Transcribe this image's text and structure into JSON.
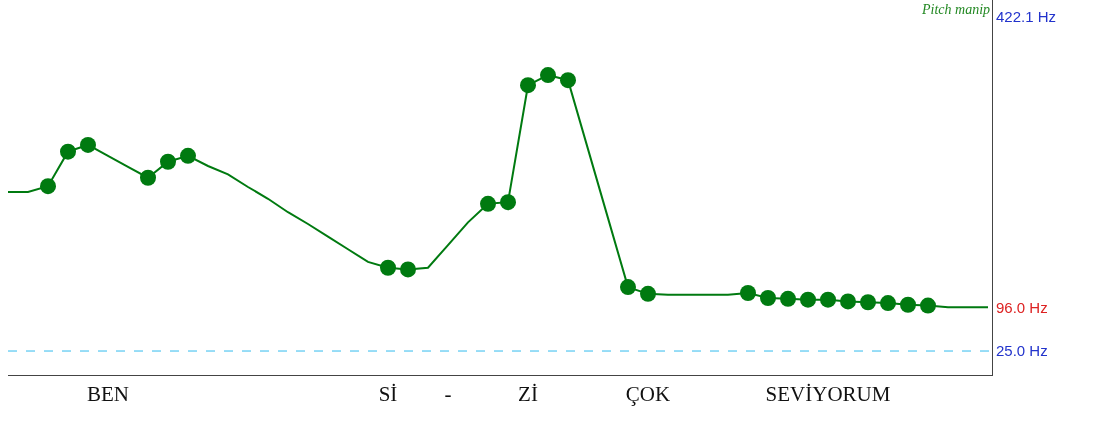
{
  "chart_data": {
    "type": "line",
    "categories": [
      null,
      null,
      null,
      null,
      null,
      "BEN",
      null,
      null,
      null,
      null,
      null,
      null,
      null,
      null,
      null,
      null,
      null,
      null,
      null,
      "Sİ",
      null,
      null,
      "-",
      null,
      null,
      null,
      "Zİ",
      null,
      null,
      null,
      null,
      null,
      "ÇOK",
      null,
      null,
      null,
      null,
      null,
      null,
      null,
      null,
      "SEVİYORUM",
      null,
      null,
      null,
      null,
      null,
      null,
      null,
      null
    ],
    "series": [
      {
        "color": "#007a10",
        "marker": "none",
        "values": [
          214,
          214,
          221,
          262,
          270,
          257,
          244,
          231,
          250,
          257,
          245,
          235,
          220,
          206,
          190,
          176,
          161,
          146,
          131,
          124,
          122,
          124,
          151,
          178,
          200,
          202,
          341,
          353,
          347,
          265,
          183,
          101,
          93,
          92,
          92,
          92,
          92,
          94,
          88,
          87,
          86,
          86,
          84,
          83,
          82,
          80,
          79,
          77,
          77,
          77
        ]
      },
      {
        "type": "scatter",
        "color": "#007a10",
        "marker": "circle",
        "values": [
          null,
          null,
          221,
          262,
          270,
          null,
          null,
          231,
          250,
          257,
          null,
          null,
          null,
          null,
          null,
          null,
          null,
          null,
          null,
          124,
          122,
          null,
          null,
          null,
          200,
          202,
          341,
          353,
          347,
          null,
          null,
          101,
          93,
          null,
          null,
          null,
          null,
          94,
          88,
          87,
          86,
          86,
          84,
          83,
          82,
          80,
          79,
          null,
          null,
          null
        ]
      }
    ],
    "ylim": [
      -3.5,
      442.3
    ],
    "yticks": [
      {
        "value": 25,
        "label": "25.0 Hz"
      },
      {
        "value": 422.1,
        "label": "422.1 Hz"
      }
    ],
    "ref_lines": [
      {
        "axis": "y",
        "value": 25,
        "color": "#33bbee",
        "line_style": "dashed"
      }
    ],
    "annotations": [
      "Pitch manip",
      "96.0 Hz"
    ]
  }
}
